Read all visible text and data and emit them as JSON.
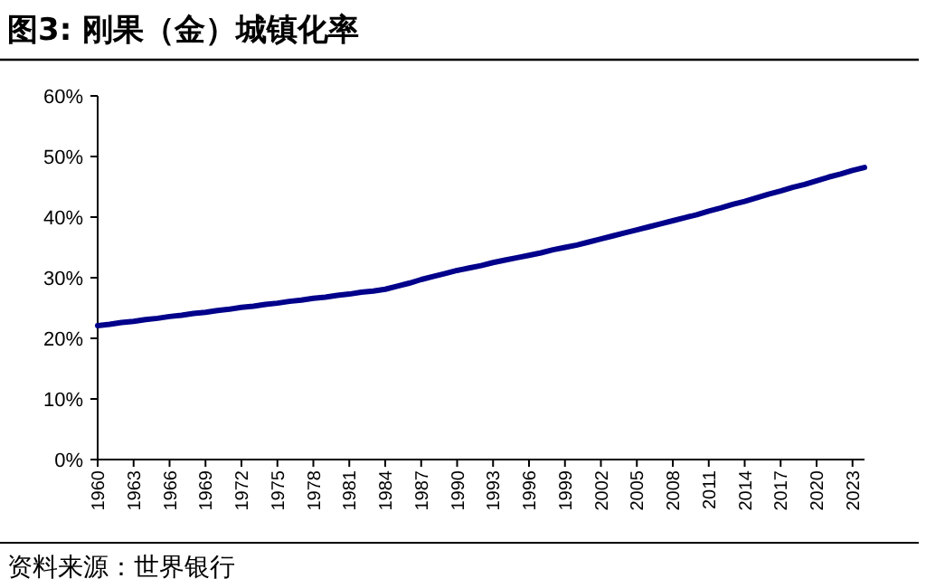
{
  "chart_data": {
    "type": "line",
    "title": "图3: 刚果（金）城镇化率",
    "annotations": [
      "资料来源：世界银行"
    ],
    "categories": [
      "1960",
      null,
      null,
      "1963",
      null,
      null,
      "1966",
      null,
      null,
      "1969",
      null,
      null,
      "1972",
      null,
      null,
      "1975",
      null,
      null,
      "1978",
      null,
      null,
      "1981",
      null,
      null,
      "1984",
      null,
      null,
      "1987",
      null,
      null,
      "1990",
      null,
      null,
      "1993",
      null,
      null,
      "1996",
      null,
      null,
      "1999",
      null,
      null,
      "2002",
      null,
      null,
      "2005",
      null,
      null,
      "2008",
      null,
      null,
      "2011",
      null,
      null,
      "2014",
      null,
      null,
      "2017",
      null,
      null,
      "2020",
      null,
      null,
      "2023",
      null
    ],
    "series": [
      {
        "color": "#00008b",
        "values": [
          22.1,
          22.3,
          22.6,
          22.8,
          23.1,
          23.3,
          23.6,
          23.8,
          24.1,
          24.3,
          24.6,
          24.8,
          25.1,
          25.3,
          25.6,
          25.8,
          26.1,
          26.3,
          26.6,
          26.8,
          27.1,
          27.3,
          27.6,
          27.8,
          28.1,
          28.6,
          29.1,
          29.7,
          30.2,
          30.7,
          31.2,
          31.6,
          32.0,
          32.5,
          32.9,
          33.3,
          33.7,
          34.1,
          34.6,
          35.0,
          35.4,
          35.9,
          36.4,
          36.9,
          37.4,
          37.9,
          38.4,
          38.9,
          39.4,
          39.9,
          40.4,
          41.0,
          41.5,
          42.1,
          42.6,
          43.2,
          43.8,
          44.3,
          44.9,
          45.4,
          46.0,
          46.6,
          47.1,
          47.7,
          48.2
        ]
      }
    ],
    "ylim": [
      0,
      60
    ],
    "yticks": [
      {
        "value": 0,
        "label": "0%"
      },
      {
        "value": 10,
        "label": "10%"
      },
      {
        "value": 20,
        "label": "20%"
      },
      {
        "value": 30,
        "label": "30%"
      },
      {
        "value": 40,
        "label": "40%"
      },
      {
        "value": 50,
        "label": "50%"
      },
      {
        "value": 60,
        "label": "60%"
      }
    ],
    "grid": false,
    "marker": "none",
    "line_style": "solid"
  }
}
